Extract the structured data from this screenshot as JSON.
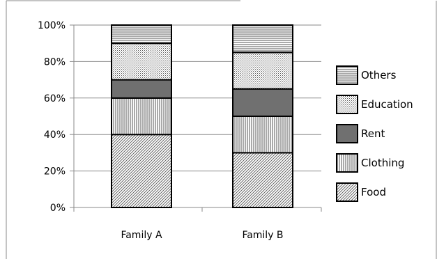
{
  "chart_data": {
    "type": "bar",
    "stacked": true,
    "percent_stacked": true,
    "categories": [
      "Family A",
      "Family B"
    ],
    "series": [
      {
        "name": "Food",
        "values": [
          40,
          30
        ],
        "pattern": "diagonal"
      },
      {
        "name": "Clothing",
        "values": [
          20,
          20
        ],
        "pattern": "vertical"
      },
      {
        "name": "Rent",
        "values": [
          10,
          15
        ],
        "pattern": "solid-gray"
      },
      {
        "name": "Education",
        "values": [
          20,
          20
        ],
        "pattern": "dots"
      },
      {
        "name": "Others",
        "values": [
          10,
          15
        ],
        "pattern": "horizontal"
      }
    ],
    "ylim": [
      0,
      100
    ],
    "yticks": [
      "0%",
      "20%",
      "40%",
      "60%",
      "80%",
      "100%"
    ],
    "grid": true,
    "legend_position": "right"
  },
  "colors": {
    "solid_gray": "#707070",
    "pattern_ink": "#555555",
    "outline": "#000000",
    "grid": "#8a8a8a"
  }
}
